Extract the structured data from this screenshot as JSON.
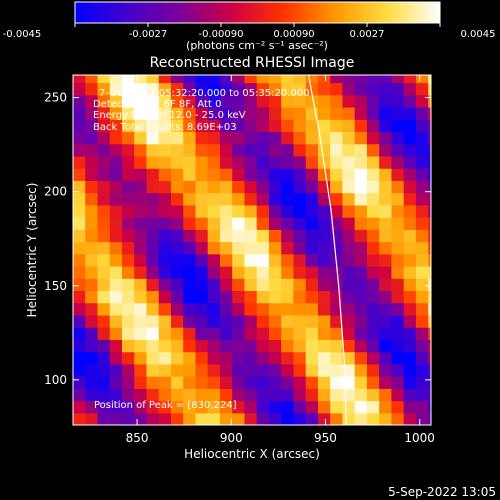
{
  "chart_data": {
    "type": "heatmap",
    "title": "Reconstructed RHESSI Image",
    "xlabel": "Heliocentric X (arcsec)",
    "ylabel": "Heliocentric Y (arcsec)",
    "xlim": [
      816,
      1006
    ],
    "ylim": [
      76,
      262
    ],
    "x_ticks": [
      850,
      900,
      950,
      1000
    ],
    "y_ticks": [
      100,
      150,
      200,
      250
    ],
    "colorbar": {
      "ticks": [
        -0.0045,
        -0.0027,
        -0.0009,
        0.0009,
        0.0027,
        0.0045
      ],
      "tick_labels": [
        "-0.0045",
        "-0.0027",
        "-0.00090",
        "0.00090",
        "0.0027",
        "0.0045"
      ],
      "range": [
        -0.0045,
        0.0045
      ],
      "unit_label": "(photons cm⁻² s⁻¹ asec⁻²)",
      "colors": [
        "#0000ff",
        "#4400cc",
        "#7a0099",
        "#cc0044",
        "#ff3300",
        "#ff9900",
        "#ffdd44",
        "#ffffff"
      ]
    },
    "annotations": {
      "time": "7-Oct-2017 05:32:20.000 to 05:35:20.000",
      "detectors": "Detectors: 3F 6F 8F, Att 0",
      "energy": "Energy Range: 12.0 - 25.0 keV",
      "counts": "Back    Total counts: 8.69E+03",
      "peak": "Position of Peak = [830,224]"
    },
    "limb": {
      "description_points": [
        [
          941,
          262
        ],
        [
          947,
          230
        ],
        [
          953,
          190
        ],
        [
          957,
          150
        ],
        [
          960,
          110
        ],
        [
          961,
          76
        ]
      ]
    },
    "peak": [
      830,
      224
    ],
    "field": {
      "kind": "stripes",
      "angle_deg": -35,
      "period_arcsec": 70,
      "amplitude": 0.0045
    }
  },
  "footer": {
    "date": "5-Sep-2022 13:05"
  }
}
